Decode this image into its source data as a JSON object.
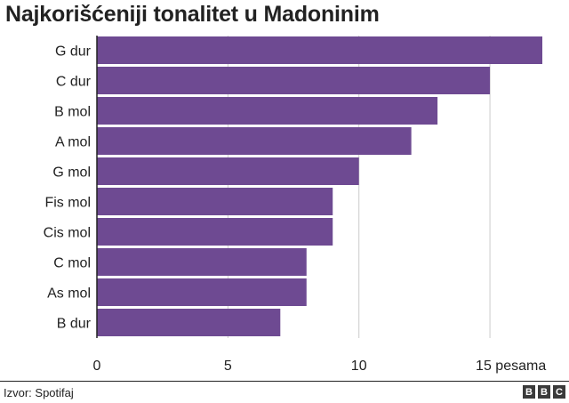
{
  "chart_data": {
    "type": "bar",
    "orientation": "horizontal",
    "title": "Najkorišćeniji tonalitet u Madoninim",
    "categories": [
      "G dur",
      "C dur",
      "B mol",
      "A mol",
      "G mol",
      "Fis mol",
      "Cis mol",
      "C mol",
      "As mol",
      "B dur"
    ],
    "values": [
      17,
      15,
      13,
      12,
      10,
      9,
      9,
      8,
      8,
      7
    ],
    "xlim": [
      0,
      17
    ],
    "xticks": [
      {
        "value": 0,
        "label": "0"
      },
      {
        "value": 5,
        "label": "5"
      },
      {
        "value": 10,
        "label": "10"
      },
      {
        "value": 15,
        "label": "15 pesama"
      }
    ],
    "grid": true,
    "bar_color": "#6e4a92",
    "grid_color": "#cccccc"
  },
  "source": "Izvor: Spotifaj",
  "logo": {
    "letters": [
      "B",
      "B",
      "C"
    ]
  }
}
